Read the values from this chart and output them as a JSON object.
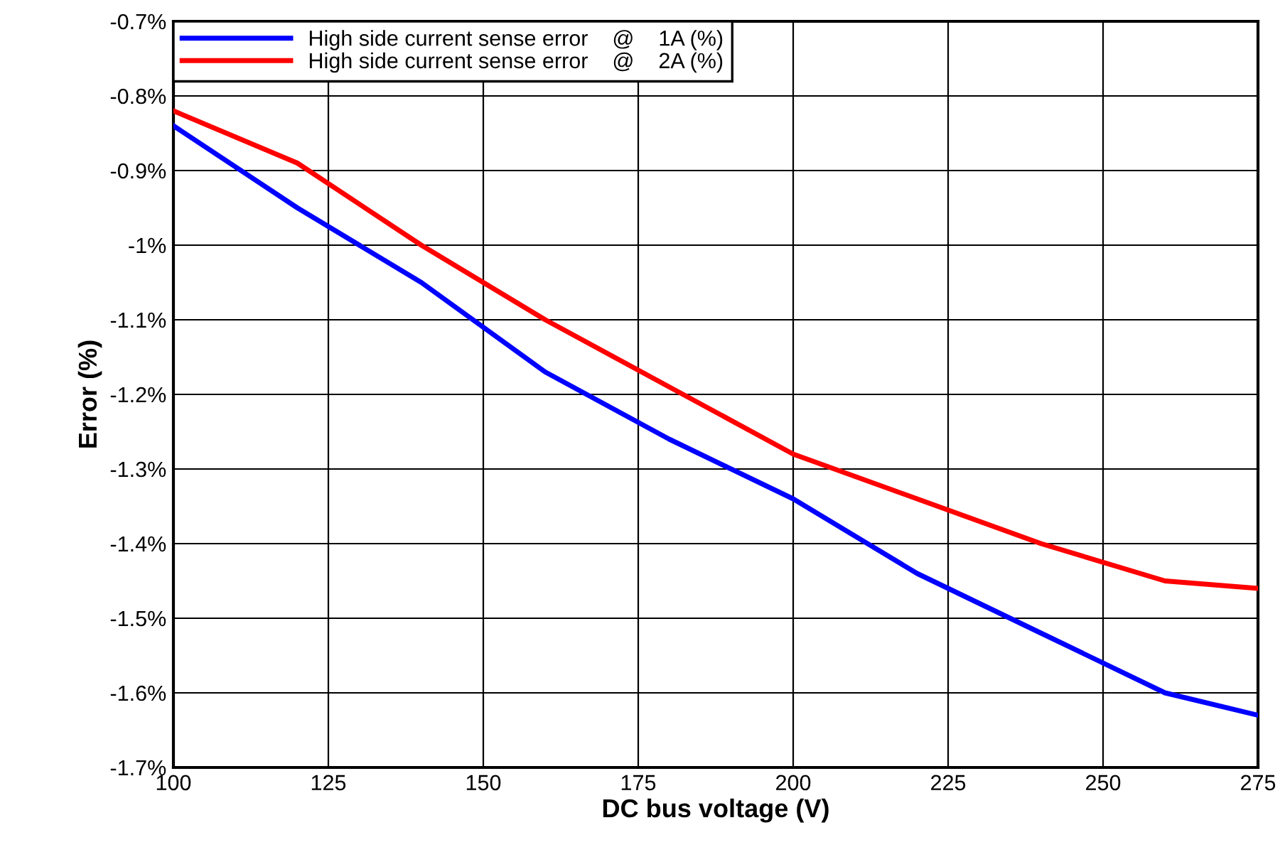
{
  "chart_data": {
    "type": "line",
    "xlabel": "DC bus voltage (V)",
    "ylabel": "Error (%)",
    "x": [
      100,
      120,
      140,
      160,
      180,
      200,
      220,
      240,
      260,
      275
    ],
    "series": [
      {
        "name": "High side current sense error    @    1A (%)",
        "color": "#0000ff",
        "values": [
          -0.84,
          -0.95,
          -1.05,
          -1.17,
          -1.26,
          -1.34,
          -1.44,
          -1.52,
          -1.6,
          -1.63
        ]
      },
      {
        "name": "High side current sense error    @    2A (%)",
        "color": "#ff0000",
        "values": [
          -0.82,
          -0.89,
          -1.0,
          -1.1,
          -1.19,
          -1.28,
          -1.34,
          -1.4,
          -1.45,
          -1.46
        ]
      }
    ],
    "xlim": [
      100,
      275
    ],
    "xticks": [
      100,
      125,
      150,
      175,
      200,
      225,
      250,
      275
    ],
    "ylim": [
      -1.7,
      -0.7
    ],
    "yticks": [
      {
        "value": -1.7,
        "label": "-1.7%"
      },
      {
        "value": -1.6,
        "label": "-1.6%"
      },
      {
        "value": -1.5,
        "label": "-1.5%"
      },
      {
        "value": -1.4,
        "label": "-1.4%"
      },
      {
        "value": -1.3,
        "label": "-1.3%"
      },
      {
        "value": -1.2,
        "label": "-1.2%"
      },
      {
        "value": -1.1,
        "label": "-1.1%"
      },
      {
        "value": -1.0,
        "label": "-1%"
      },
      {
        "value": -0.9,
        "label": "-0.9%"
      },
      {
        "value": -0.8,
        "label": "-0.8%"
      },
      {
        "value": -0.7,
        "label": "-0.7%"
      }
    ],
    "grid": true,
    "legend": "top left",
    "marker": "none",
    "line_style": "solid"
  }
}
